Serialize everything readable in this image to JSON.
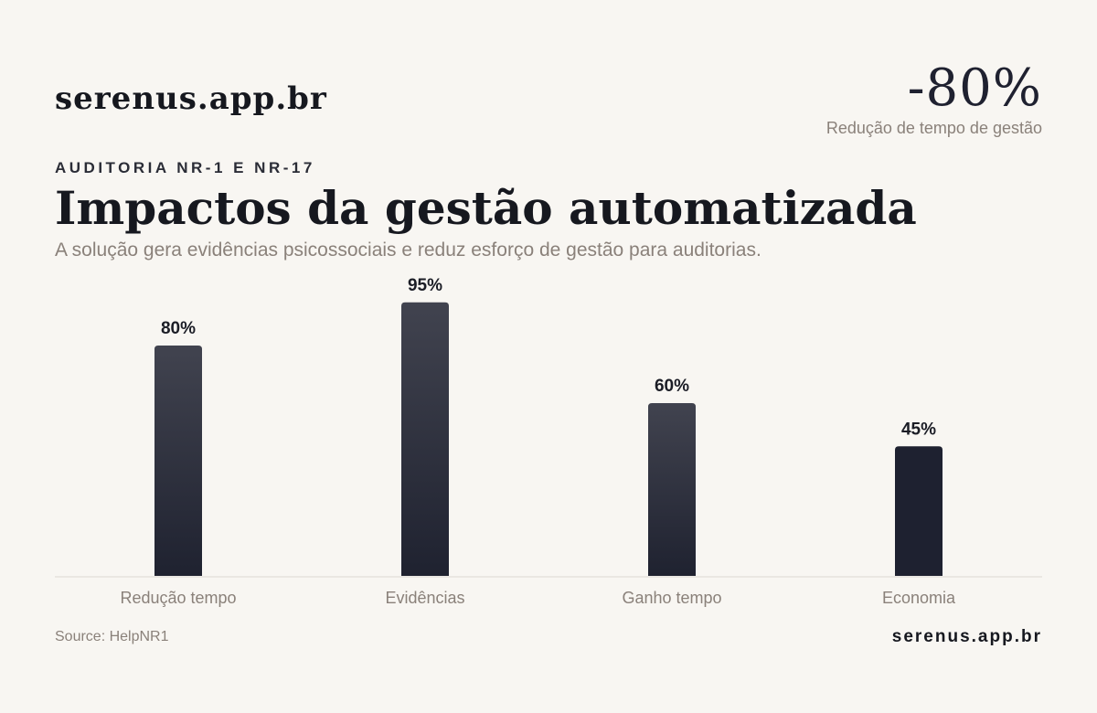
{
  "brand": "serenus.app.br",
  "kpi": {
    "value": "-80%",
    "label": "Redução de tempo de gestão"
  },
  "eyebrow": "AUDITORIA NR-1 E NR-17",
  "title": "Impactos da gestão automatizada",
  "subtitle": "A solução gera evidências psicossociais e reduz esforço de gestão para auditorias.",
  "source": "Source: HelpNR1",
  "footer_brand": "serenus.app.br",
  "colors": {
    "background": "#f8f6f2",
    "bar_top": "#41434f",
    "bar_bottom": "#1f2230",
    "bar_highlight": "#1e2130",
    "axis": "#dcd8d2",
    "muted_text": "#8a817a"
  },
  "chart_data": {
    "type": "bar",
    "categories": [
      "Redução tempo",
      "Evidências",
      "Ganho tempo",
      "Economia"
    ],
    "values": [
      80,
      95,
      60,
      45
    ],
    "value_labels": [
      "80%",
      "95%",
      "60%",
      "45%"
    ],
    "ylim": [
      0,
      100
    ],
    "grid": false,
    "legend": "none"
  }
}
